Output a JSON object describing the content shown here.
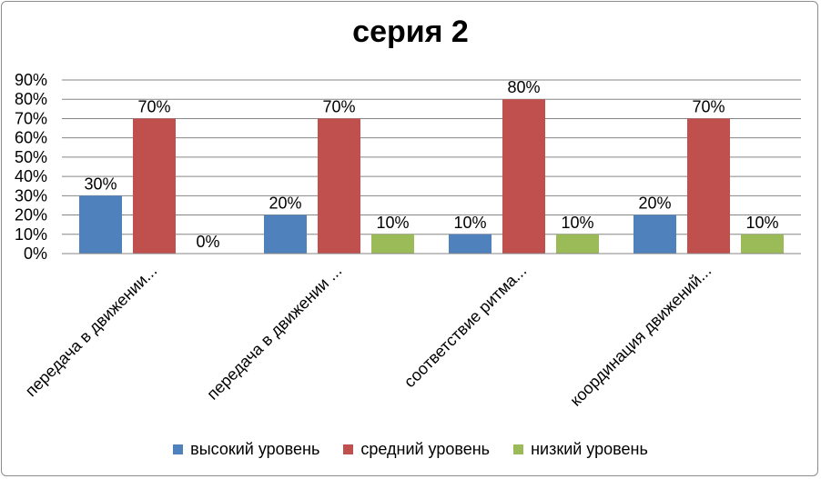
{
  "chart_data": {
    "type": "bar",
    "title": "серия 2",
    "xlabel": "",
    "ylabel": "",
    "ylim": [
      0,
      90
    ],
    "yticks": [
      "0%",
      "10%",
      "20%",
      "30%",
      "40%",
      "50%",
      "60%",
      "70%",
      "80%",
      "90%"
    ],
    "grid": true,
    "legend_position": "bottom",
    "categories": [
      "передача в движении...",
      "передача в движении ...",
      "соответствие ритма...",
      "координация движений..."
    ],
    "series": [
      {
        "name": "высокий уровень",
        "color": "#4f81bd",
        "values": [
          30,
          20,
          10,
          20
        ],
        "labels": [
          "30%",
          "20%",
          "10%",
          "20%"
        ]
      },
      {
        "name": "средний уровень",
        "color": "#c0504d",
        "values": [
          70,
          70,
          80,
          70
        ],
        "labels": [
          "70%",
          "70%",
          "80%",
          "70%"
        ]
      },
      {
        "name": "низкий уровень",
        "color": "#9bbb59",
        "values": [
          0,
          10,
          10,
          10
        ],
        "labels": [
          "0%",
          "10%",
          "10%",
          "10%"
        ]
      }
    ]
  }
}
